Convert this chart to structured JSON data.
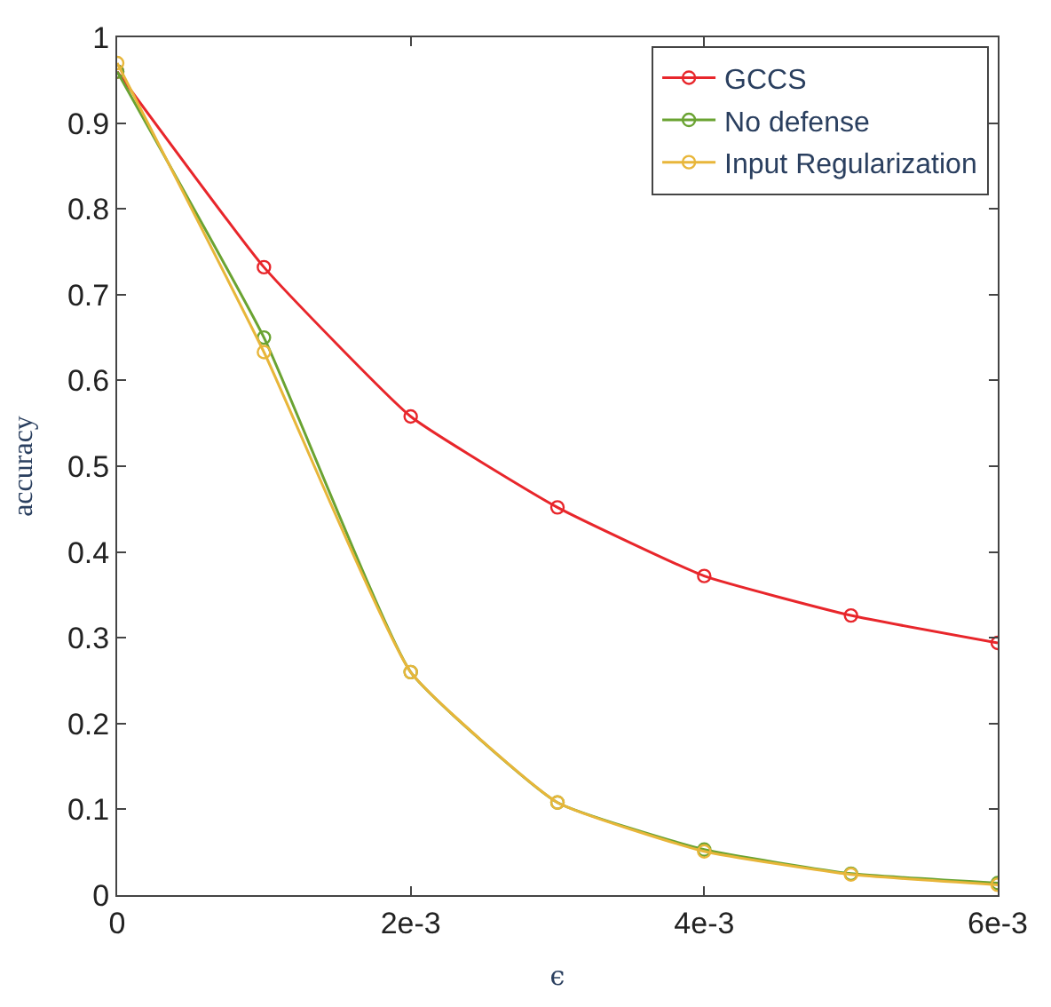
{
  "chart_data": {
    "type": "line",
    "xlabel": "ϵ",
    "ylabel": "accuracy",
    "x": [
      0,
      0.001,
      0.002,
      0.003,
      0.004,
      0.005,
      0.006
    ],
    "series": [
      {
        "name": "GCCS",
        "color": "#e8262b",
        "values": [
          0.96,
          0.732,
          0.558,
          0.452,
          0.372,
          0.326,
          0.294
        ]
      },
      {
        "name": "No defense",
        "color": "#6aa332",
        "values": [
          0.96,
          0.65,
          0.26,
          0.108,
          0.053,
          0.025,
          0.014
        ]
      },
      {
        "name": "Input Regularization",
        "color": "#e8b63a",
        "values": [
          0.97,
          0.633,
          0.26,
          0.108,
          0.051,
          0.024,
          0.012
        ]
      }
    ],
    "xlim": [
      0,
      0.006
    ],
    "xticks": [
      0,
      {
        "value": 0.002,
        "label": "2e-3"
      },
      {
        "value": 0.004,
        "label": "4e-3"
      },
      {
        "value": 0.006,
        "label": "6e-3"
      }
    ],
    "ylim": [
      0,
      1
    ],
    "yticks": [
      0,
      0.1,
      0.2,
      0.3,
      0.4,
      0.5,
      0.6,
      0.7,
      0.8,
      0.9,
      1
    ],
    "marker": "circle",
    "line_style": "solid",
    "legend": "top right"
  }
}
